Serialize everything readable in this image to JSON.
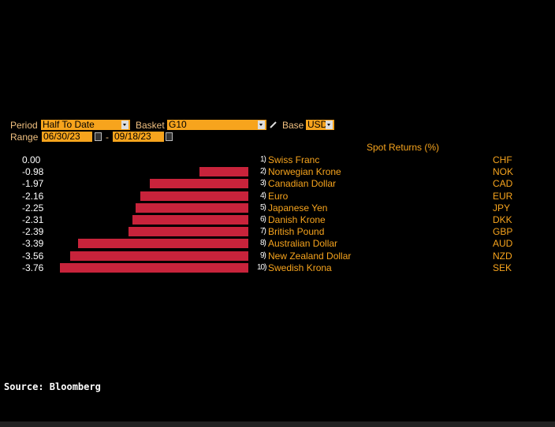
{
  "controls": {
    "period_label": "Period",
    "period": "Half To Date",
    "basket_label": "Basket",
    "basket": "G10",
    "base_label": "Base",
    "base": "USD",
    "range_label": "Range",
    "start": "06/30/23",
    "range_separator": "-",
    "end": "09/18/23"
  },
  "chart_data": {
    "type": "bar",
    "orientation": "horizontal",
    "title": "Spot Returns (%)",
    "ranks": [
      "1)",
      "2)",
      "3)",
      "4)",
      "5)",
      "6)",
      "7)",
      "8)",
      "9)",
      "10)"
    ],
    "categories": [
      "Swiss Franc",
      "Norwegian Krone",
      "Canadian Dollar",
      "Euro",
      "Japanese Yen",
      "Danish Krone",
      "British Pound",
      "Australian Dollar",
      "New Zealand Dollar",
      "Swedish Krona"
    ],
    "codes": [
      "CHF",
      "NOK",
      "CAD",
      "EUR",
      "JPY",
      "DKK",
      "GBP",
      "AUD",
      "NZD",
      "SEK"
    ],
    "values": [
      0.0,
      -0.98,
      -1.97,
      -2.16,
      -2.25,
      -2.31,
      -2.39,
      -3.39,
      -3.56,
      -3.76
    ],
    "value_labels": [
      "0.00",
      "-0.98",
      "-1.97",
      "-2.16",
      "-2.25",
      "-2.31",
      "-2.39",
      "-3.39",
      "-3.56",
      "-3.76"
    ],
    "color": "#c8233b"
  },
  "source": "Source: Bloomberg"
}
